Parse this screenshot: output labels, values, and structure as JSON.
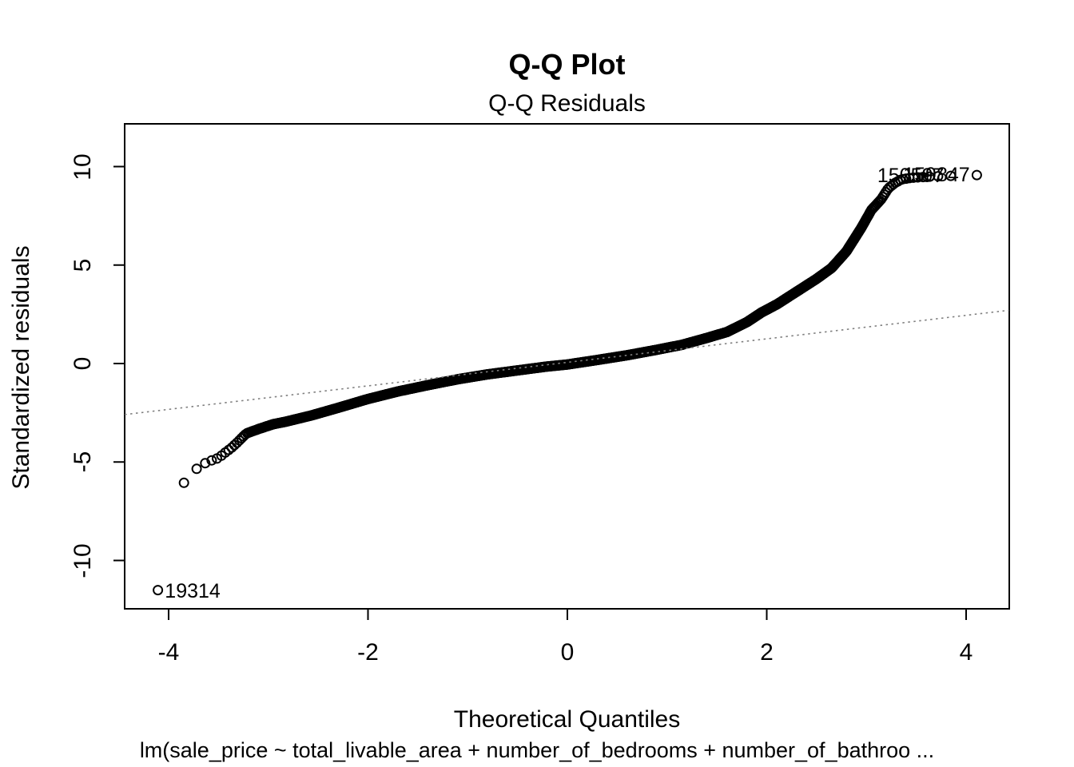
{
  "figure": {
    "title": "Q-Q Plot",
    "subtitle": "Q-Q Residuals",
    "xlabel": "Theoretical Quantiles",
    "ylabel": "Standardized residuals",
    "caption": "lm(sale_price ~ total_livable_area + number_of_bedrooms + number_of_bathroo ..."
  },
  "chart_data": {
    "type": "scatter",
    "subtype": "qq-plot",
    "title": "Q-Q Plot",
    "subtitle": "Q-Q Residuals",
    "xlabel": "Theoretical Quantiles",
    "ylabel": "Standardized residuals",
    "caption": "lm(sale_price ~ total_livable_area + number_of_bedrooms + number_of_bathroo ...",
    "xlim": [
      -4.44,
      4.43
    ],
    "ylim": [
      -12.5,
      12.1
    ],
    "x_ticks": [
      -4,
      -2,
      0,
      2,
      4
    ],
    "y_ticks": [
      -10,
      -5,
      0,
      5,
      10
    ],
    "grid": false,
    "n_points": 25000,
    "point_style": {
      "shape": "open-circle",
      "color": "#000000",
      "radius_px": 5.5,
      "stroke_px": 2
    },
    "reference_line": {
      "style": "dotted",
      "color": "#7f7f7f",
      "slope": 0.597,
      "intercept": 0.06
    },
    "curve_anchors": [
      [
        -4.11,
        -11.56
      ],
      [
        -3.85,
        -6.08
      ],
      [
        -3.72,
        -5.35
      ],
      [
        -3.63,
        -5.05
      ],
      [
        -3.57,
        -4.92
      ],
      [
        -3.5,
        -4.8
      ],
      [
        -3.44,
        -4.55
      ],
      [
        -3.37,
        -4.28
      ],
      [
        -3.31,
        -4.0
      ],
      [
        -3.22,
        -3.55
      ],
      [
        -3.1,
        -3.33
      ],
      [
        -2.95,
        -3.08
      ],
      [
        -2.83,
        -2.96
      ],
      [
        -2.57,
        -2.64
      ],
      [
        -2.3,
        -2.25
      ],
      [
        -2.0,
        -1.8
      ],
      [
        -1.7,
        -1.42
      ],
      [
        -1.4,
        -1.1
      ],
      [
        -1.1,
        -0.8
      ],
      [
        -0.8,
        -0.55
      ],
      [
        -0.5,
        -0.35
      ],
      [
        -0.2,
        -0.15
      ],
      [
        0.0,
        -0.05
      ],
      [
        0.3,
        0.18
      ],
      [
        0.6,
        0.42
      ],
      [
        0.9,
        0.7
      ],
      [
        1.15,
        0.95
      ],
      [
        1.4,
        1.3
      ],
      [
        1.6,
        1.6
      ],
      [
        1.8,
        2.1
      ],
      [
        1.95,
        2.6
      ],
      [
        2.1,
        3.0
      ],
      [
        2.3,
        3.65
      ],
      [
        2.5,
        4.3
      ],
      [
        2.65,
        4.85
      ],
      [
        2.8,
        5.7
      ],
      [
        2.95,
        6.9
      ],
      [
        3.05,
        7.8
      ],
      [
        3.15,
        8.35
      ],
      [
        3.22,
        8.9
      ],
      [
        3.28,
        9.15
      ],
      [
        3.35,
        9.35
      ],
      [
        3.45,
        9.43
      ],
      [
        3.6,
        9.48
      ],
      [
        3.72,
        9.51
      ],
      [
        3.85,
        9.53
      ],
      [
        4.11,
        9.57
      ]
    ],
    "labeled_points": [
      {
        "label": "19314",
        "x": -4.11,
        "y": -11.56,
        "side": "right"
      },
      {
        "label": "150597",
        "x": 3.85,
        "y": 9.53,
        "side": "left"
      },
      {
        "label": "159847",
        "x": 4.11,
        "y": 9.57,
        "side": "left"
      }
    ]
  }
}
